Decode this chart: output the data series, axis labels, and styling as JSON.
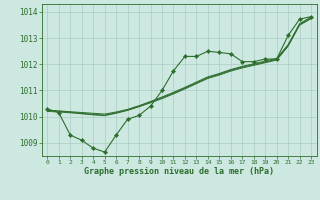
{
  "x": [
    0,
    1,
    2,
    3,
    4,
    5,
    6,
    7,
    8,
    9,
    10,
    11,
    12,
    13,
    14,
    15,
    16,
    17,
    18,
    19,
    20,
    21,
    22,
    23
  ],
  "line_zigzag": [
    1010.3,
    1010.15,
    1009.3,
    1009.1,
    1008.8,
    1008.65,
    1009.3,
    1009.9,
    1010.05,
    1010.4,
    1011.0,
    1011.75,
    1012.3,
    1012.3,
    1012.5,
    1012.45,
    1012.4,
    1012.1,
    1012.1,
    1012.2,
    1012.2,
    1013.1,
    1013.72,
    1013.82
  ],
  "line_straight1": [
    1010.25,
    1010.22,
    1010.19,
    1010.16,
    1010.13,
    1010.1,
    1010.18,
    1010.28,
    1010.42,
    1010.58,
    1010.75,
    1010.93,
    1011.12,
    1011.32,
    1011.52,
    1011.65,
    1011.8,
    1011.92,
    1012.02,
    1012.12,
    1012.22,
    1012.75,
    1013.55,
    1013.8
  ],
  "line_straight2": [
    1010.25,
    1010.21,
    1010.17,
    1010.13,
    1010.09,
    1010.06,
    1010.15,
    1010.26,
    1010.4,
    1010.56,
    1010.72,
    1010.9,
    1011.09,
    1011.29,
    1011.49,
    1011.62,
    1011.77,
    1011.89,
    1011.99,
    1012.09,
    1012.19,
    1012.72,
    1013.52,
    1013.77
  ],
  "line_straight3": [
    1010.2,
    1010.18,
    1010.15,
    1010.11,
    1010.07,
    1010.04,
    1010.13,
    1010.24,
    1010.38,
    1010.53,
    1010.69,
    1010.87,
    1011.06,
    1011.26,
    1011.46,
    1011.59,
    1011.74,
    1011.86,
    1011.96,
    1012.06,
    1012.16,
    1012.69,
    1013.49,
    1013.74
  ],
  "bg_color": "#cce8e0",
  "grid_color": "#aaccc4",
  "line_color": "#2d6e2d",
  "markersize": 2.2,
  "xlabel": "Graphe pression niveau de la mer (hPa)",
  "ylim": [
    1008.5,
    1014.3
  ],
  "yticks": [
    1009,
    1010,
    1011,
    1012,
    1013,
    1014
  ],
  "xlim": [
    -0.5,
    23.5
  ],
  "xticks": [
    0,
    1,
    2,
    3,
    4,
    5,
    6,
    7,
    8,
    9,
    10,
    11,
    12,
    13,
    14,
    15,
    16,
    17,
    18,
    19,
    20,
    21,
    22,
    23
  ],
  "figsize": [
    3.2,
    2.0
  ],
  "dpi": 100
}
